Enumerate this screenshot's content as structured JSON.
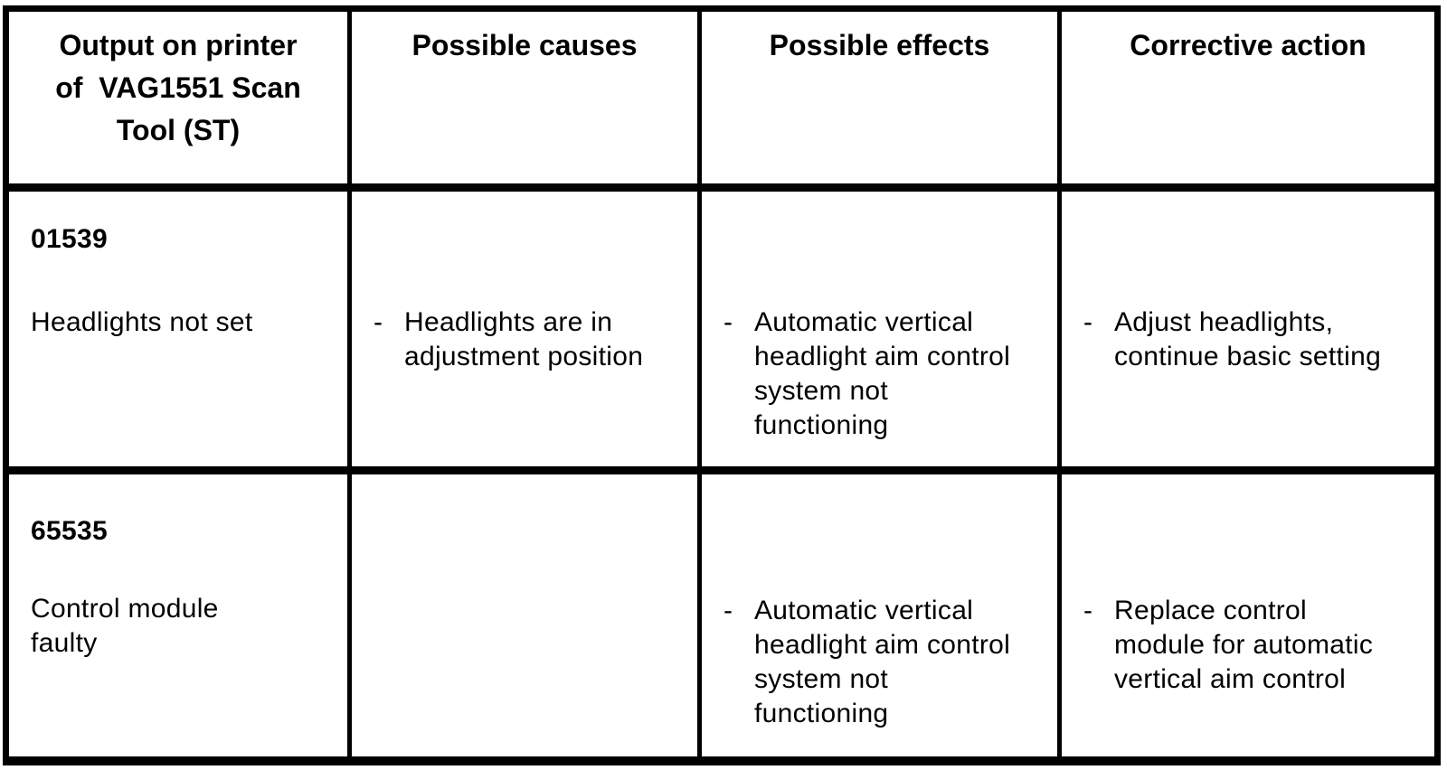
{
  "table": {
    "columns": [
      {
        "label": "Output on printer\nof  VAG1551 Scan\nTool (ST)"
      },
      {
        "label": "Possible causes"
      },
      {
        "label": "Possible effects"
      },
      {
        "label": "Corrective action"
      }
    ],
    "rows": [
      {
        "code": "01539",
        "description": "Headlights not set",
        "causes": {
          "bullet": "-",
          "text": "Headlights are in\nadjustment position"
        },
        "effects": {
          "bullet": "-",
          "text": "Automatic vertical\nheadlight aim control\nsystem not\nfunctioning"
        },
        "corrective": {
          "bullet": "-",
          "text": "Adjust headlights,\ncontinue basic setting"
        }
      },
      {
        "code": "65535",
        "description": "Control module\nfaulty",
        "causes": null,
        "effects": {
          "bullet": "-",
          "text": "Automatic vertical\nheadlight aim control\nsystem not\nfunctioning"
        },
        "corrective": {
          "bullet": "-",
          "text": "Replace control\nmodule for automatic\nvertical aim control"
        }
      }
    ]
  }
}
